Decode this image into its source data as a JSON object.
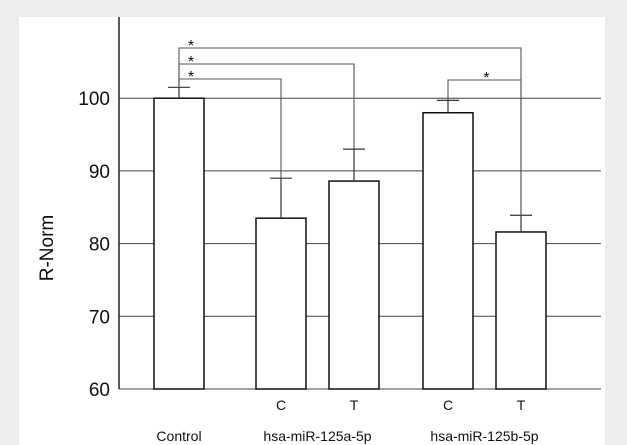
{
  "chart_data": {
    "type": "bar",
    "ylabel": "R-Norm",
    "ylim": [
      60,
      110
    ],
    "yticks": [
      60,
      70,
      80,
      90,
      100
    ],
    "grid": true,
    "bars": [
      {
        "label": "Control",
        "value": 100.0,
        "error": 1.5
      },
      {
        "label": "C",
        "value": 83.5,
        "error": 5.5
      },
      {
        "label": "T",
        "value": 88.6,
        "error": 4.4
      },
      {
        "label": "C",
        "value": 98.0,
        "error": 1.7
      },
      {
        "label": "T",
        "value": 81.6,
        "error": 2.3
      }
    ],
    "groups": [
      {
        "label": "hsa-miR-125a-5p",
        "bars": [
          1,
          2
        ]
      },
      {
        "label": "hsa-miR-125b-5p",
        "bars": [
          3,
          4
        ]
      }
    ],
    "significance": [
      {
        "from": 0,
        "to": 4,
        "label": "*"
      },
      {
        "from": 0,
        "to": 2,
        "label": "*"
      },
      {
        "from": 0,
        "to": 1,
        "label": "*"
      },
      {
        "from": 3,
        "to": 4,
        "label": "*"
      }
    ]
  }
}
